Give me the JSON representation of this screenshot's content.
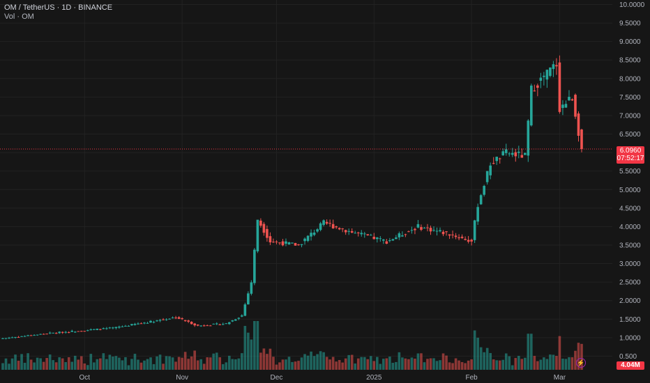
{
  "header": {
    "title": "OM / TetherUS · 1D · BINANCE",
    "volume_label": "Vol · OM"
  },
  "last_price": {
    "price": "6.0960",
    "countdown": "07:52:17"
  },
  "last_volume": "4.04M",
  "colors": {
    "bg": "#161616",
    "up": "#26a69a",
    "down": "#ef5350",
    "grid": "#222222",
    "text": "#b2b5be",
    "flag": "#f23645"
  },
  "icons": {
    "alert": "lightning-icon"
  },
  "chart_data": {
    "type": "candlestick",
    "title": "OM / TetherUS · 1D · BINANCE",
    "y_axis": {
      "ticks": [
        0.5,
        1,
        1.5,
        2,
        2.5,
        3,
        3.5,
        4,
        4.5,
        5,
        5.5,
        6,
        6.5,
        7,
        7.5,
        8,
        8.5,
        9,
        9.5,
        10
      ],
      "tick_labels": [
        "0.500",
        "1.0000",
        "1.5000",
        "2.0000",
        "2.5000",
        "3.0000",
        "3.5000",
        "4.0000",
        "4.5000",
        "5.0000",
        "5.5000",
        "6.0000",
        "6.5000",
        "7.0000",
        "7.5000",
        "8.0000",
        "8.5000",
        "9.0000",
        "9.5000",
        "10.0000"
      ],
      "range": [
        0.5,
        10
      ]
    },
    "x_axis": {
      "labels": [
        "Oct",
        "Nov",
        "Dec",
        "2025",
        "Feb",
        "Mar"
      ],
      "label_dates": [
        "2024-10-01",
        "2024-11-01",
        "2024-12-01",
        "2025-01-01",
        "2025-02-01",
        "2025-03-01"
      ],
      "range": [
        "2024-09-05",
        "2025-03-08"
      ]
    },
    "last_price": 6.096,
    "keypoints": [
      {
        "date": "2024-09-05",
        "price": 0.98
      },
      {
        "date": "2024-09-20",
        "price": 1.12
      },
      {
        "date": "2024-10-10",
        "price": 1.26
      },
      {
        "date": "2024-10-30",
        "price": 1.55
      },
      {
        "date": "2024-11-06",
        "price": 1.32
      },
      {
        "date": "2024-11-15",
        "price": 1.38
      },
      {
        "date": "2024-11-20",
        "price": 1.6
      },
      {
        "date": "2024-11-23",
        "price": 2.5
      },
      {
        "date": "2024-11-25",
        "price": 4.2
      },
      {
        "date": "2024-11-29",
        "price": 3.6
      },
      {
        "date": "2024-12-08",
        "price": 3.5
      },
      {
        "date": "2024-12-16",
        "price": 4.1
      },
      {
        "date": "2024-12-25",
        "price": 3.85
      },
      {
        "date": "2025-01-05",
        "price": 3.6
      },
      {
        "date": "2025-01-15",
        "price": 4.0
      },
      {
        "date": "2025-01-25",
        "price": 3.8
      },
      {
        "date": "2025-02-01",
        "price": 3.6
      },
      {
        "date": "2025-02-03",
        "price": 4.6
      },
      {
        "date": "2025-02-07",
        "price": 5.7
      },
      {
        "date": "2025-02-12",
        "price": 6.0
      },
      {
        "date": "2025-02-18",
        "price": 5.9
      },
      {
        "date": "2025-02-20",
        "price": 7.7
      },
      {
        "date": "2025-02-28",
        "price": 8.4
      },
      {
        "date": "2025-03-01",
        "price": 7.2
      },
      {
        "date": "2025-03-05",
        "price": 7.5
      },
      {
        "date": "2025-03-08",
        "price": 6.1
      }
    ]
  }
}
